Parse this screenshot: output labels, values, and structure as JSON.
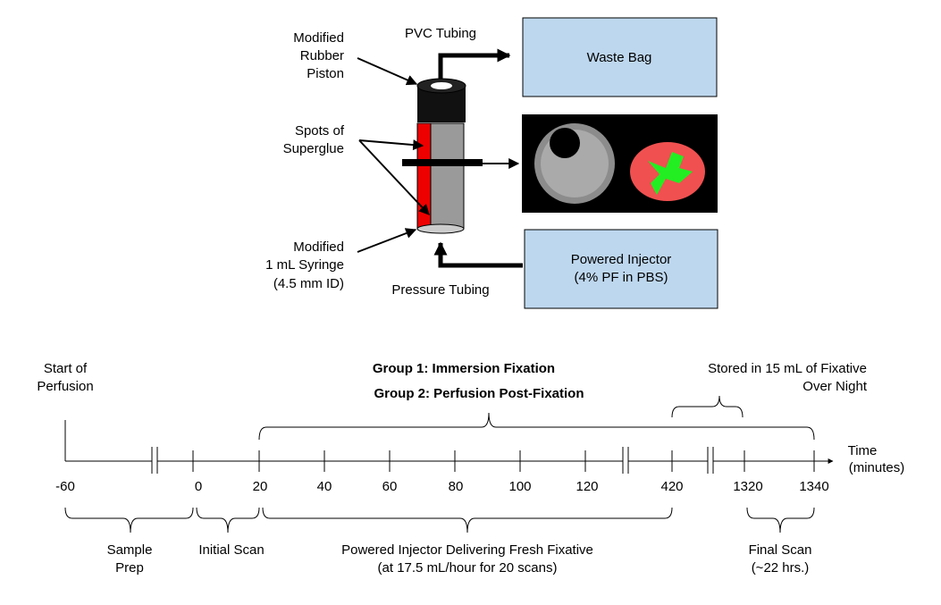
{
  "apparatus": {
    "piston_label": [
      "Modified",
      "Rubber",
      "Piston"
    ],
    "pvc_label": "PVC Tubing",
    "waste_bag": "Waste Bag",
    "superglue_label": [
      "Spots of",
      "Superglue"
    ],
    "syringe_label": [
      "Modified",
      "1 mL Syringe",
      "(4.5 mm ID)"
    ],
    "pressure_label": "Pressure Tubing",
    "injector": [
      "Powered Injector",
      "(4% PF in PBS)"
    ]
  },
  "timeline": {
    "start_label": [
      "Start of",
      "Perfusion"
    ],
    "groups": [
      "Group 1: Immersion Fixation",
      "Group 2: Perfusion Post-Fixation"
    ],
    "stored_label": [
      "Stored in 15 mL of Fixative",
      "Over Night"
    ],
    "axis_label": [
      "Time",
      "(minutes)"
    ],
    "ticks": [
      "-60",
      "0",
      "20",
      "40",
      "60",
      "80",
      "100",
      "120",
      "420",
      "1320",
      "1340"
    ],
    "phases": [
      [
        "Sample",
        "Prep"
      ],
      [
        "Initial Scan"
      ],
      [
        "Powered Injector Delivering Fresh Fixative",
        "(at 17.5 mL/hour for 20 scans)"
      ],
      [
        "Final Scan",
        "(~22 hrs.)"
      ]
    ]
  }
}
